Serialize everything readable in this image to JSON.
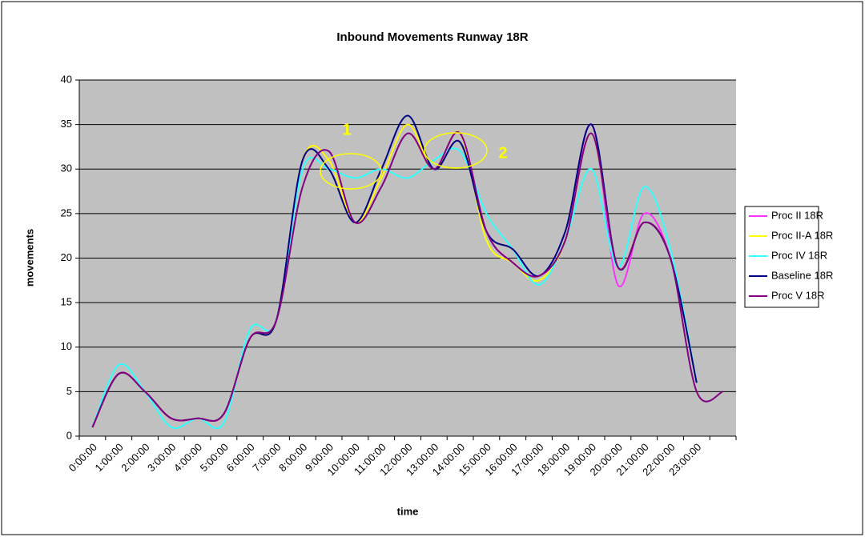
{
  "chart_data": {
    "type": "line",
    "title": "Inbound Movements Runway 18R",
    "x_label": "time",
    "y_label": "movements",
    "categories": [
      "0:00:00",
      "1:00:00",
      "2:00:00",
      "3:00:00",
      "4:00:00",
      "5:00:00",
      "6:00:00",
      "7:00:00",
      "8:00:00",
      "9:00:00",
      "10:00:00",
      "11:00:00",
      "12:00:00",
      "13:00:00",
      "14:00:00",
      "15:00:00",
      "16:00:00",
      "17:00:00",
      "18:00:00",
      "19:00:00",
      "20:00:00",
      "21:00:00",
      "22:00:00",
      "23:00:00",
      null
    ],
    "series": [
      {
        "name": "Proc II 18R",
        "color": "#ff33ff",
        "values": [
          1,
          7,
          5,
          2,
          2,
          2.5,
          11,
          13,
          31,
          31,
          24,
          29,
          35,
          30,
          34,
          23,
          19.5,
          18,
          22,
          35,
          17,
          25,
          20,
          6,
          null
        ]
      },
      {
        "name": "Proc II-A 18R",
        "color": "#ffff00",
        "values": [
          1,
          7,
          5,
          2,
          2,
          2.5,
          11,
          13,
          31,
          31,
          24,
          29,
          35,
          30,
          34,
          22,
          19.5,
          17.5,
          22,
          34,
          19,
          24,
          20,
          6,
          null
        ]
      },
      {
        "name": "Proc IV 18R",
        "color": "#33ffff",
        "values": [
          1,
          8,
          5,
          1,
          2,
          1.5,
          12,
          13,
          30,
          30,
          29,
          30,
          29,
          31,
          32,
          25,
          21,
          17,
          22,
          30,
          19,
          28,
          21,
          6,
          null
        ]
      },
      {
        "name": "Baseline 18R",
        "color": "#000080",
        "values": [
          1,
          7,
          5,
          2,
          2,
          2.5,
          11,
          13,
          31,
          30,
          24,
          30,
          36,
          30,
          33,
          23,
          21,
          18,
          23,
          35,
          19,
          24,
          20,
          6,
          null
        ]
      },
      {
        "name": "Proc V 18R",
        "color": "#800080",
        "values": [
          1,
          7,
          5,
          2,
          2,
          2.5,
          11,
          13,
          28,
          32,
          24,
          28,
          34,
          30,
          34,
          23,
          19.5,
          18,
          22,
          34,
          19,
          24,
          20,
          5,
          5
        ]
      }
    ],
    "ylim": [
      0,
      40
    ],
    "yticks": [
      0,
      5,
      10,
      15,
      20,
      25,
      30,
      35,
      40
    ],
    "grid": true,
    "smooth": true,
    "legend": "right",
    "annotations": [
      "1",
      "2"
    ]
  }
}
